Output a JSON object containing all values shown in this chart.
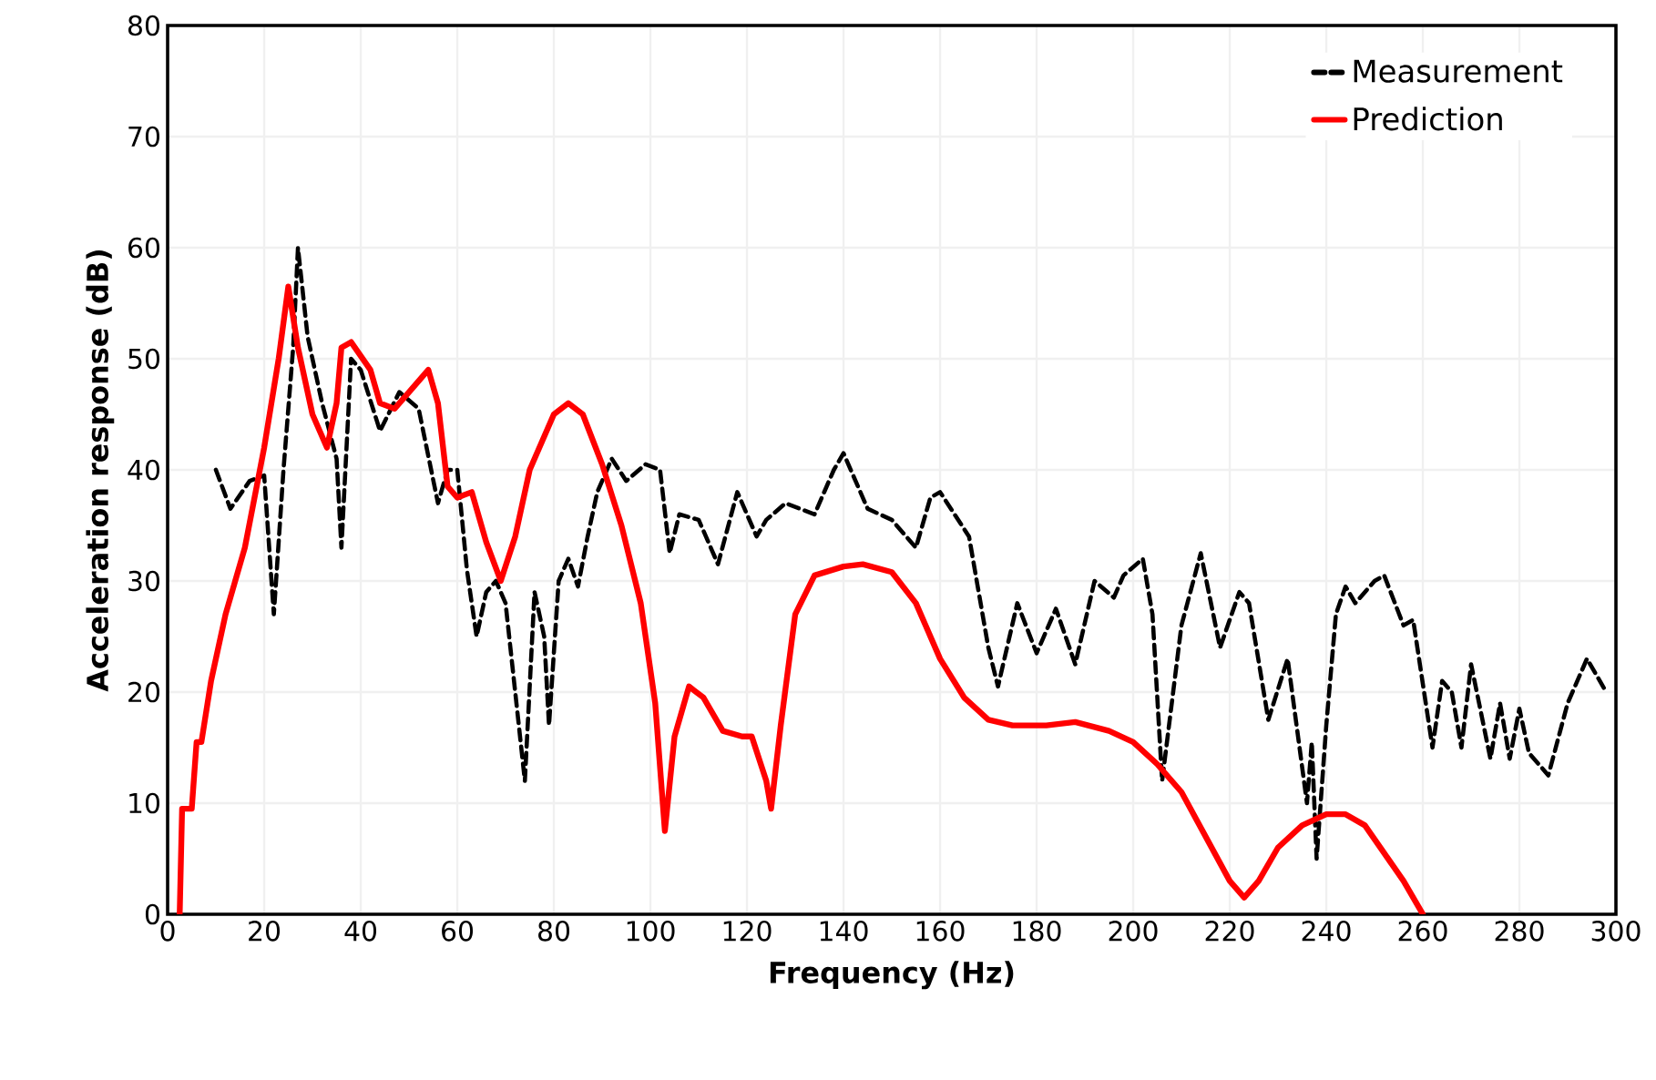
{
  "chart_data": {
    "type": "line",
    "xlabel": "Frequency (Hz)",
    "ylabel": "Acceleration response  (dB)",
    "xlim": [
      0,
      300
    ],
    "ylim": [
      0,
      80
    ],
    "xticks": [
      0,
      20,
      40,
      60,
      80,
      100,
      120,
      140,
      160,
      180,
      200,
      220,
      240,
      260,
      280,
      300
    ],
    "yticks": [
      0,
      10,
      20,
      30,
      40,
      50,
      60,
      70,
      80
    ],
    "grid": true,
    "legend": "top right",
    "marker": "none",
    "series": [
      {
        "name": "Measurement",
        "color": "#000000",
        "line_style": "dashed",
        "x": [
          10,
          13,
          17,
          20,
          22,
          24,
          26,
          27,
          29,
          32,
          35,
          36,
          38,
          40,
          44,
          48,
          52,
          56,
          58,
          60,
          62,
          64,
          66,
          68,
          70,
          72,
          74,
          76,
          78,
          79,
          81,
          83,
          85,
          87,
          89,
          92,
          95,
          99,
          102,
          104,
          106,
          110,
          114,
          118,
          122,
          124,
          128,
          134,
          138,
          140,
          145,
          150,
          155,
          158,
          160,
          166,
          170,
          172,
          176,
          180,
          184,
          188,
          192,
          196,
          198,
          202,
          204,
          206,
          210,
          214,
          218,
          222,
          224,
          228,
          232,
          236,
          237,
          238,
          240,
          242,
          244,
          246,
          250,
          252,
          256,
          258,
          262,
          264,
          266,
          268,
          270,
          274,
          276,
          278,
          280,
          282,
          286,
          290,
          294,
          298
        ],
        "values": [
          40,
          36.5,
          39,
          39.5,
          27,
          40,
          51,
          60,
          52,
          46,
          41,
          33,
          50,
          49,
          43.5,
          47,
          45.5,
          37,
          40,
          40,
          31,
          25,
          29,
          30,
          28,
          20,
          12,
          29,
          25,
          17,
          30,
          32,
          29.5,
          34,
          38,
          41,
          39,
          40.5,
          40,
          32.5,
          36,
          35.5,
          31.5,
          38,
          34,
          35.5,
          37,
          36,
          40,
          41.5,
          36.5,
          35.5,
          33,
          37.5,
          38,
          34,
          24,
          20.5,
          28,
          23.5,
          27.5,
          22.5,
          30,
          28.5,
          30.5,
          32,
          27,
          12,
          26,
          32.5,
          24,
          29,
          28,
          17.5,
          23,
          10,
          15.5,
          5,
          17,
          27,
          29.5,
          28,
          30,
          30.5,
          26,
          26.5,
          15,
          21,
          20,
          15,
          22.5,
          14,
          19,
          14,
          18.5,
          14.5,
          12.5,
          19,
          23,
          20
        ]
      },
      {
        "name": "Prediction",
        "color": "#ff0000",
        "line_style": "solid",
        "x": [
          2.5,
          3,
          5,
          6,
          7,
          9,
          12,
          16,
          20,
          23,
          25,
          27,
          30,
          33,
          35,
          36,
          38,
          42,
          44,
          47,
          50,
          54,
          56,
          58,
          60,
          63,
          66,
          69,
          72,
          75,
          80,
          83,
          86,
          90,
          94,
          98,
          101,
          103,
          105,
          108,
          111,
          115,
          119,
          121,
          124,
          125,
          127,
          130,
          134,
          140,
          144,
          150,
          155,
          160,
          165,
          170,
          175,
          182,
          188,
          195,
          200,
          205,
          210,
          215,
          220,
          223,
          226,
          230,
          235,
          240,
          244,
          248,
          252,
          256,
          260
        ],
        "values": [
          0,
          9.5,
          9.5,
          15.5,
          15.5,
          21,
          27,
          33,
          42,
          50,
          56.5,
          51,
          45,
          42,
          46,
          51,
          51.5,
          49,
          46,
          45.5,
          47,
          49,
          46,
          38.5,
          37.5,
          38,
          33.5,
          30,
          34,
          40,
          45,
          46,
          45,
          40.5,
          35,
          28,
          19,
          7.5,
          16,
          20.5,
          19.5,
          16.5,
          16,
          16,
          12,
          9.5,
          17,
          27,
          30.5,
          31.3,
          31.5,
          30.8,
          28,
          23,
          19.5,
          17.5,
          17,
          17,
          17.3,
          16.5,
          15.5,
          13.5,
          11,
          7,
          3,
          1.5,
          3,
          6,
          8,
          9,
          9,
          8,
          5.5,
          3,
          0
        ]
      }
    ]
  }
}
